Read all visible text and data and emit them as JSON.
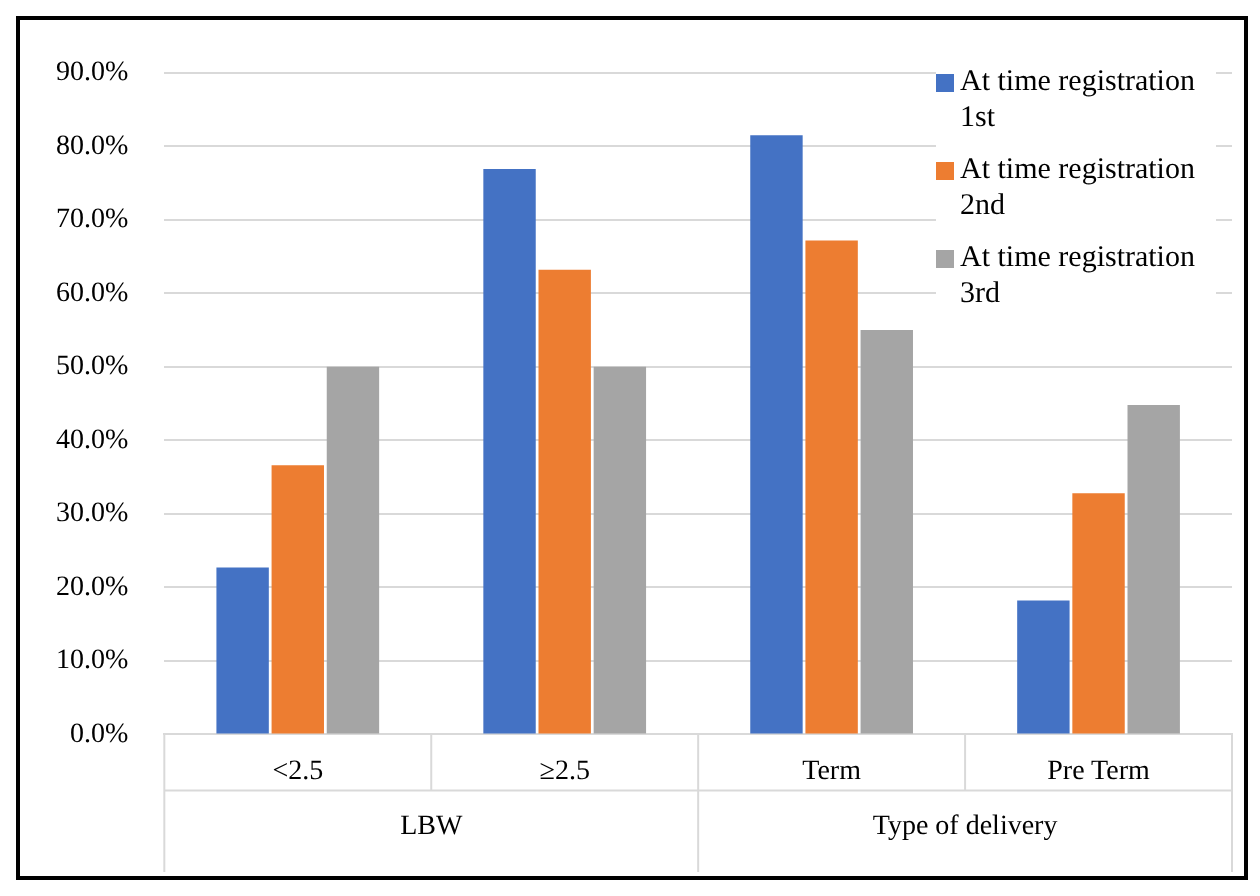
{
  "chart_data": {
    "type": "bar",
    "categories": [
      "<2.5",
      "≥2.5",
      "Term",
      "Pre Term"
    ],
    "annotations": [
      "LBW",
      "Type of delivery"
    ],
    "series": [
      {
        "name": "At time registration 1st",
        "color": "#4472c4",
        "values": [
          22.7,
          76.9,
          81.5,
          18.2
        ]
      },
      {
        "name": "At time registration 2nd",
        "color": "#ed7d31",
        "values": [
          36.6,
          63.2,
          67.2,
          32.8
        ]
      },
      {
        "name": "At time registration 3rd",
        "color": "#a5a5a5",
        "values": [
          50.0,
          50.0,
          55.0,
          44.8
        ]
      }
    ],
    "ylim": [
      0,
      90
    ],
    "yticks": [
      {
        "value": 0,
        "label": "0.0%"
      },
      {
        "value": 10,
        "label": "10.0%"
      },
      {
        "value": 20,
        "label": "20.0%"
      },
      {
        "value": 30,
        "label": "30.0%"
      },
      {
        "value": 40,
        "label": "40.0%"
      },
      {
        "value": 50,
        "label": "50.0%"
      },
      {
        "value": 60,
        "label": "60.0%"
      },
      {
        "value": 70,
        "label": "70.0%"
      },
      {
        "value": 80,
        "label": "80.0%"
      },
      {
        "value": 90,
        "label": "90.0%"
      }
    ],
    "grid": "y",
    "legend": "top right"
  }
}
